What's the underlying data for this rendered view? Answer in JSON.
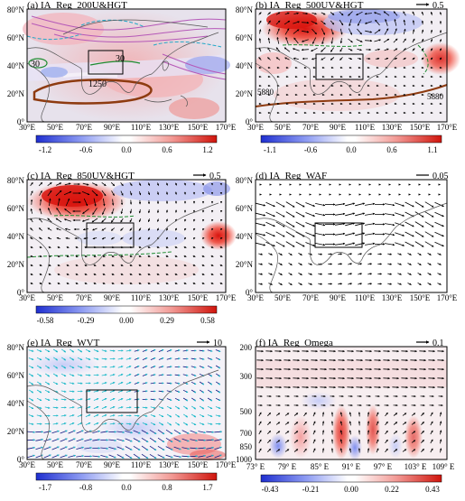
{
  "figure": {
    "panels": [
      {
        "id": "a",
        "title": "(a) IA_Reg_200U&HGT",
        "xticks": [
          "30°E",
          "50°E",
          "70°E",
          "90°E",
          "110°E",
          "130°E",
          "150°E",
          "170°E"
        ],
        "yticks": [
          "0°",
          "20°N",
          "40°N",
          "60°N",
          "80°N"
        ],
        "contour_labels": [
          "30",
          "30",
          "1250"
        ],
        "colorbar": [
          "-1.2",
          "-0.6",
          "0.0",
          "0.6",
          "1.2"
        ]
      },
      {
        "id": "b",
        "title": "(b) IA_Reg_500UV&HGT",
        "ref_vector": "0.5",
        "xticks": [
          "30°E",
          "50°E",
          "70°E",
          "90°E",
          "110°E",
          "130°E",
          "150°E",
          "170°E"
        ],
        "yticks": [
          "0°",
          "20°N",
          "40°N",
          "60°N",
          "80°N"
        ],
        "contour_labels": [
          "5880",
          "5880"
        ],
        "colorbar": [
          "-1.1",
          "-0.6",
          "0.0",
          "0.6",
          "1.1"
        ]
      },
      {
        "id": "c",
        "title": "(c) IA_Reg_850UV&HGT",
        "ref_vector": "0.5",
        "xticks": [
          "30°E",
          "50°E",
          "70°E",
          "90°E",
          "110°E",
          "130°E",
          "150°E",
          "170°E"
        ],
        "yticks": [
          "0°",
          "20°N",
          "40°N",
          "60°N",
          "80°N"
        ],
        "colorbar": [
          "-0.58",
          "-0.29",
          "0.00",
          "0.29",
          "0.58"
        ]
      },
      {
        "id": "d",
        "title": "(d) IA_Reg_WAF",
        "ref_vector": "0.05",
        "xticks": [
          "30°E",
          "50°E",
          "70°E",
          "90°E",
          "110°E",
          "130°E",
          "150°E",
          "170°E"
        ],
        "yticks": [
          "0°",
          "20°N",
          "40°N",
          "60°N",
          "80°N"
        ]
      },
      {
        "id": "e",
        "title": "(e) IA_Reg_WVT",
        "ref_vector": "10",
        "xticks": [
          "30°E",
          "50°E",
          "70°E",
          "90°E",
          "110°E",
          "130°E",
          "150°E",
          "170°E"
        ],
        "yticks": [
          "0°",
          "20°N",
          "40°N",
          "60°N",
          "80°N"
        ],
        "colorbar": [
          "-1.7",
          "-0.8",
          "0.0",
          "0.8",
          "1.7"
        ]
      },
      {
        "id": "f",
        "title": "(f) IA_Reg_Omega",
        "ref_vector": "0.1",
        "xticks": [
          "73° E",
          "79° E",
          "85° E",
          "91° E",
          "97° E",
          "103° E",
          "109° E"
        ],
        "yticks": [
          "200",
          "300",
          "500",
          "700",
          "850",
          "1000"
        ],
        "colorbar": [
          "-0.43",
          "-0.21",
          "0.00",
          "0.22",
          "0.43"
        ]
      }
    ]
  },
  "chart_data": [
    {
      "type": "heatmap",
      "title": "(a) IA_Reg_200U&HGT",
      "x_range": [
        30,
        170
      ],
      "y_range": [
        0,
        80
      ],
      "colorbar_range": [
        -1.2,
        1.2
      ],
      "colors": {
        "negative": "#3b4fd8",
        "positive": "#e0281e"
      },
      "notes": "regression of 200 hPa zonal wind (shading) and geopotential height contours"
    },
    {
      "type": "heatmap",
      "title": "(b) IA_Reg_500UV&HGT",
      "x_range": [
        30,
        170
      ],
      "y_range": [
        0,
        80
      ],
      "colorbar_range": [
        -1.1,
        1.1
      ],
      "reference_vector": 0.5
    },
    {
      "type": "heatmap",
      "title": "(c) IA_Reg_850UV&HGT",
      "x_range": [
        30,
        170
      ],
      "y_range": [
        0,
        80
      ],
      "colorbar_range": [
        -0.58,
        0.58
      ],
      "reference_vector": 0.5
    },
    {
      "type": "heatmap",
      "title": "(d) IA_Reg_WAF",
      "x_range": [
        30,
        170
      ],
      "y_range": [
        0,
        80
      ],
      "reference_vector": 0.05
    },
    {
      "type": "heatmap",
      "title": "(e) IA_Reg_WVT",
      "x_range": [
        30,
        170
      ],
      "y_range": [
        0,
        80
      ],
      "colorbar_range": [
        -1.7,
        1.7
      ],
      "reference_vector": 10
    },
    {
      "type": "heatmap",
      "title": "(f) IA_Reg_Omega",
      "x_categories": [
        "73° E",
        "79° E",
        "85° E",
        "91° E",
        "97° E",
        "103° E",
        "109° E"
      ],
      "y_levels": [
        200,
        300,
        500,
        700,
        850,
        1000
      ],
      "colorbar_range": [
        -0.43,
        0.43
      ],
      "reference_vector": 0.1
    }
  ]
}
